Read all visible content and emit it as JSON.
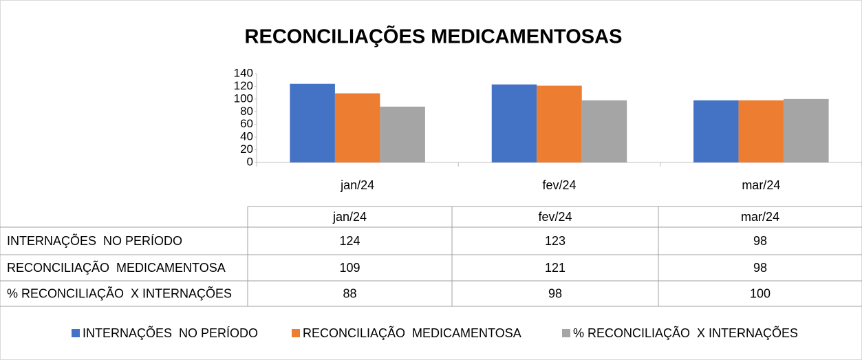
{
  "chart_data": {
    "type": "bar",
    "title": "RECONCILIAÇÕES MEDICAMENTOSAS",
    "categories": [
      "jan/24",
      "fev/24",
      "mar/24"
    ],
    "series": [
      {
        "name": "INTERNAÇÕES  NO PERÍODO",
        "color": "#4472c4",
        "values": [
          124,
          123,
          98
        ]
      },
      {
        "name": "RECONCILIAÇÃO  MEDICAMENTOSA",
        "color": "#ed7d31",
        "values": [
          109,
          121,
          98
        ]
      },
      {
        "name": "% RECONCILIAÇÃO  X INTERNAÇÕES",
        "color": "#a5a5a5",
        "values": [
          88,
          98,
          100
        ]
      }
    ],
    "ylim": [
      0,
      140
    ],
    "yticks": [
      0,
      20,
      40,
      60,
      80,
      100,
      120,
      140
    ],
    "grid": false,
    "legend": "bottom"
  }
}
